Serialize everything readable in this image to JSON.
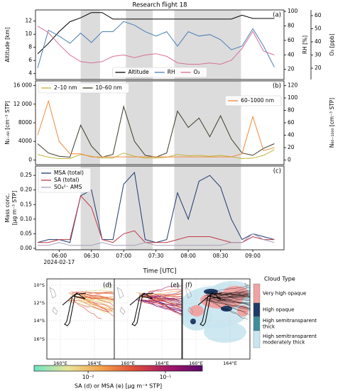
{
  "chart_data": [
    {
      "type": "line",
      "title": "Research flight 18",
      "panel_label": "(a)",
      "x": [
        "05:40",
        "05:50",
        "06:00",
        "06:10",
        "06:20",
        "06:30",
        "06:40",
        "06:50",
        "07:00",
        "07:10",
        "07:20",
        "07:30",
        "07:40",
        "07:50",
        "08:00",
        "08:10",
        "08:20",
        "08:30",
        "08:40",
        "08:50",
        "09:00",
        "09:10",
        "09:20"
      ],
      "xlim": [
        "05:38",
        "09:29"
      ],
      "shaded": [
        [
          "06:20",
          "06:38"
        ],
        [
          "07:02",
          "07:27"
        ],
        [
          "07:47",
          "08:49"
        ]
      ],
      "ylabel": "Altitude [km]",
      "ylim": [
        3.1,
        13.7
      ],
      "yticks": [
        4,
        6,
        8,
        10,
        12
      ],
      "y2label": "RH [%]",
      "y2lim": [
        6,
        102
      ],
      "y2ticks": [
        20,
        40,
        60,
        80,
        100
      ],
      "y3label": "O₃ [ppb]",
      "y3lim": [
        11.4,
        64.3
      ],
      "y3ticks": [
        20,
        30,
        40,
        50,
        60
      ],
      "legend": "lower center",
      "legend_columns": 3,
      "series": [
        {
          "name": "Altitude",
          "color": "#000000",
          "values": [
            7.0,
            8.6,
            10.4,
            11.9,
            12.5,
            13.3,
            13.3,
            12.3,
            12.3,
            12.3,
            12.3,
            12.3,
            12.3,
            12.3,
            12.3,
            12.3,
            12.3,
            12.3,
            12.3,
            12.9,
            12.4,
            12.4,
            12.4
          ]
        },
        {
          "name": "RH",
          "color": "#4a7fb5",
          "axis": "y2",
          "values": [
            22,
            74,
            66,
            56,
            70,
            57,
            72,
            72,
            86,
            81,
            72,
            66,
            72,
            52,
            72,
            66,
            68,
            61,
            47,
            52,
            76,
            52,
            23
          ]
        },
        {
          "name": "O₃",
          "color": "#d6709a",
          "axis": "y3",
          "values": [
            52,
            47,
            38,
            30,
            25,
            24,
            25,
            29,
            30,
            28,
            30,
            31,
            29,
            24,
            23,
            23,
            24,
            23,
            26,
            35,
            48,
            33,
            30
          ]
        }
      ]
    },
    {
      "type": "line",
      "panel_label": "(b)",
      "x": [
        "05:40",
        "05:50",
        "06:00",
        "06:10",
        "06:20",
        "06:30",
        "06:40",
        "06:50",
        "07:00",
        "07:10",
        "07:20",
        "07:30",
        "07:40",
        "07:50",
        "08:00",
        "08:10",
        "08:20",
        "08:30",
        "08:40",
        "08:50",
        "09:00",
        "09:10",
        "09:20"
      ],
      "xlim": [
        "05:38",
        "09:29"
      ],
      "shaded": [
        [
          "06:20",
          "06:38"
        ],
        [
          "07:02",
          "07:27"
        ],
        [
          "07:47",
          "08:49"
        ]
      ],
      "ylabel": "N₂₋₆₀ [cm⁻³ STP]",
      "ylim": [
        -1000,
        17000
      ],
      "yticks": [
        0,
        4000,
        8000,
        {
          "value": 12000,
          "label": "12 000"
        },
        {
          "value": 16000,
          "label": "16 000"
        }
      ],
      "y2label": "N₆₀₋₁₀₀₀ [cm⁻³ STP]",
      "y2lim": [
        -7.5,
        127.5
      ],
      "y2ticks": [
        0,
        20,
        40,
        60,
        80,
        100,
        120
      ],
      "legend": "upper left",
      "legend_columns": 2,
      "y2legend": "upper right",
      "series": [
        {
          "name": "2–10 nm",
          "color": "#c2b63a",
          "values": [
            1200,
            600,
            300,
            300,
            1200,
            800,
            400,
            400,
            1500,
            800,
            400,
            400,
            600,
            1200,
            900,
            1000,
            800,
            1000,
            700,
            300,
            400,
            1000,
            2200
          ]
        },
        {
          "name": "10–60 nm",
          "color": "#3b3b2a",
          "values": [
            3500,
            1500,
            800,
            600,
            7500,
            3000,
            600,
            1200,
            11500,
            4000,
            1000,
            600,
            1500,
            10500,
            7000,
            9000,
            5000,
            9500,
            4500,
            1500,
            1000,
            2500,
            3500
          ]
        },
        {
          "name": "60–1000 nm",
          "color": "#f08a3c",
          "axis": "y2",
          "values": [
            40,
            95,
            30,
            10,
            10,
            5,
            5,
            5,
            5,
            5,
            5,
            5,
            5,
            5,
            5,
            5,
            5,
            5,
            5,
            10,
            70,
            15,
            20
          ]
        }
      ]
    },
    {
      "type": "line",
      "panel_label": "(c)",
      "x": [
        "05:40",
        "05:50",
        "06:00",
        "06:10",
        "06:20",
        "06:30",
        "06:40",
        "06:50",
        "07:00",
        "07:10",
        "07:20",
        "07:30",
        "07:40",
        "07:50",
        "08:00",
        "08:10",
        "08:20",
        "08:30",
        "08:40",
        "08:50",
        "09:00",
        "09:10",
        "09:20"
      ],
      "xlim": [
        "05:38",
        "09:29"
      ],
      "shaded": [
        [
          "06:20",
          "06:38"
        ],
        [
          "07:02",
          "07:27"
        ],
        [
          "07:47",
          "08:49"
        ]
      ],
      "xticks": [
        "06:00",
        "06:30",
        "07:00",
        "07:30",
        "08:00",
        "08:30",
        "09:00"
      ],
      "date": "2024-02-17",
      "xlabel": "Time [UTC]",
      "ylabel": [
        "Mass conc.",
        "[μg m⁻³ STP]"
      ],
      "ylim": [
        -0.005,
        0.282
      ],
      "yticks": [
        {
          "value": 0,
          "label": "0.00"
        },
        0.05,
        {
          "value": 0.1,
          "label": "0.10"
        },
        0.15,
        {
          "value": 0.2,
          "label": "0.20"
        },
        0.25
      ],
      "legend": "upper left",
      "legend_columns": 1,
      "series": [
        {
          "name": "MSA (total)",
          "color": "#1f3a6e",
          "values": [
            0.02,
            0.03,
            0.03,
            0.02,
            0.18,
            0.2,
            0.03,
            0.03,
            0.22,
            0.26,
            0.03,
            0.02,
            0.03,
            0.19,
            0.1,
            0.23,
            0.25,
            0.21,
            0.1,
            0.03,
            0.05,
            0.04,
            0.03
          ]
        },
        {
          "name": "SA (total)",
          "color": "#c0394a",
          "values": [
            0.02,
            0.02,
            0.03,
            0.03,
            0.18,
            0.14,
            0.03,
            0.02,
            0.05,
            0.06,
            0.02,
            0.02,
            0.02,
            0.03,
            0.04,
            0.04,
            0.04,
            0.03,
            0.02,
            0.02,
            0.04,
            0.03,
            0.03
          ]
        },
        {
          "name": "SO₄²⁻ AMS",
          "color": "#a79bb8",
          "values": [
            0.01,
            0.01,
            0.02,
            0.01,
            0.01,
            0.01,
            0.02,
            0.01,
            0.01,
            0.01,
            0.02,
            0.01,
            0.01,
            0.01,
            0.01,
            0.01,
            0.01,
            0.01,
            0.02,
            0.02,
            0.05,
            0.03,
            0.02
          ]
        }
      ]
    }
  ],
  "maps": {
    "panel_labels": [
      "(d)",
      "(e)",
      "(f)"
    ],
    "yticks": [
      "10°S",
      "12°S",
      "14°S",
      "16°S"
    ],
    "xticks": [
      "160°E",
      "164°E"
    ],
    "colorbar": {
      "label": "SA (d) or MSA (e) [μg m⁻³ STP]",
      "log": true,
      "lim": [
        0.002,
        0.3
      ],
      "ticks": [
        {
          "value": 0.01,
          "label": "10⁻²"
        },
        {
          "value": 0.1,
          "label": "10⁻¹"
        }
      ],
      "colors": [
        "#6fe3c3",
        "#e8e49a",
        "#f3a24a",
        "#dd4b3a",
        "#a3186a",
        "#5b0a6b"
      ]
    },
    "cloud_legend": {
      "title": "Cloud Type",
      "items": [
        {
          "label": [
            "Very high opaque"
          ],
          "color": "#f0a3a3"
        },
        {
          "label": [
            "High opaque"
          ],
          "color": "#1f3a66"
        },
        {
          "label": [
            "High semitransparent",
            "thick"
          ],
          "color": "#3e8f9a"
        },
        {
          "label": [
            "High semitransparent",
            "moderately thick"
          ],
          "color": "#c9e6f0"
        }
      ]
    }
  }
}
